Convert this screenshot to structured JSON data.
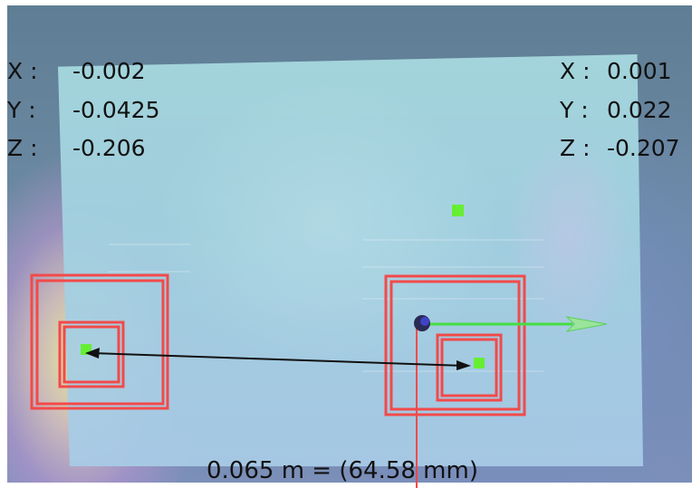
{
  "left_point": {
    "x_label": "X :",
    "x_value": "-0.002",
    "y_label": "Y :",
    "y_value": "-0.0425",
    "z_label": "Z :",
    "z_value": "-0.206"
  },
  "right_point": {
    "x_label": "X :",
    "x_value": "0.001",
    "y_label": "Y :",
    "y_value": "0.022",
    "z_label": "Z :",
    "z_value": "-0.207"
  },
  "measurement": {
    "label": "0.065  m = (64.58 mm)"
  },
  "colors": {
    "marker_box": "#f24a4a",
    "point_marker": "#66ee33",
    "axis_arrow": "#44dd44",
    "measure_line": "#111111",
    "origin_sphere": "#2a2a55"
  },
  "icons": [
    "origin-sphere-icon",
    "x-axis-arrow-icon",
    "point-marker-icon"
  ]
}
